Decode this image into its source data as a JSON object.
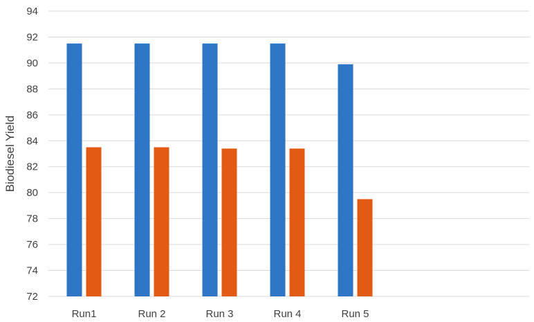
{
  "chart_data": {
    "type": "bar",
    "title": "",
    "xlabel": "",
    "ylabel": "Biodiesel Yield",
    "categories": [
      "Run1",
      "Run 2",
      "Run 3",
      "Run 4",
      "Run 5"
    ],
    "series": [
      {
        "values": [
          91.5,
          91.5,
          91.5,
          91.5,
          89.9
        ],
        "color": "#2E75C6"
      },
      {
        "values": [
          83.5,
          83.5,
          83.4,
          83.4,
          79.5
        ],
        "color": "#E35A14"
      }
    ],
    "ylim": [
      72,
      94
    ],
    "yticks": [
      72,
      74,
      76,
      78,
      80,
      82,
      84,
      86,
      88,
      90,
      92,
      94
    ],
    "grid": true,
    "legend": "none"
  }
}
